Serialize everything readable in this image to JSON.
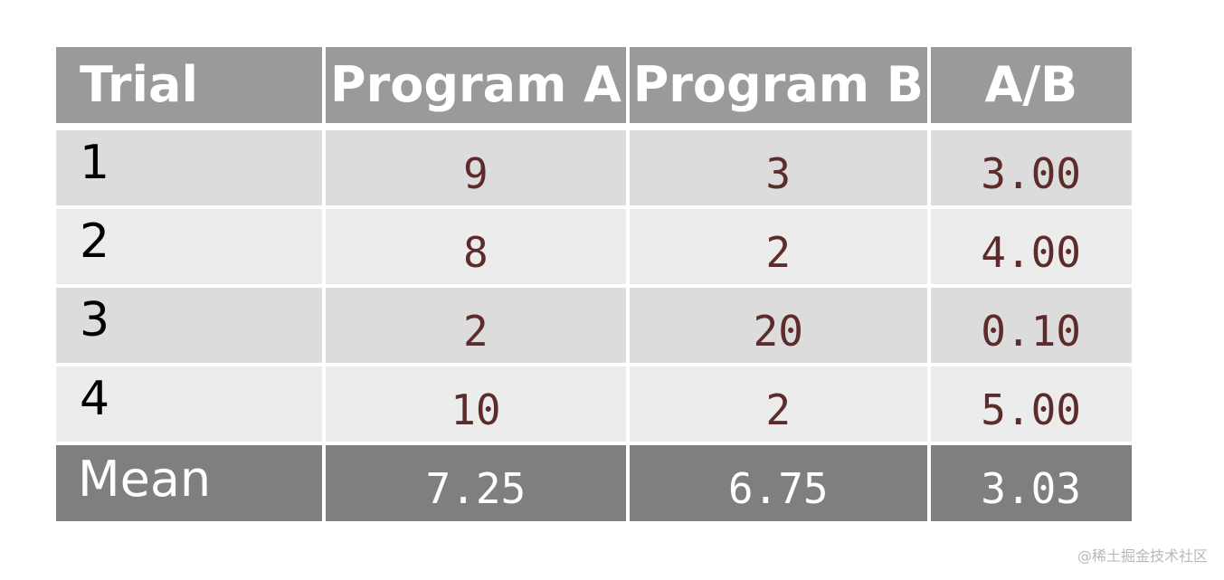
{
  "table": {
    "headers": [
      "Trial",
      "Program A",
      "Program B",
      "A/B"
    ],
    "rows": [
      {
        "trial": "1",
        "a": "9",
        "b": "3",
        "ratio": "3.00"
      },
      {
        "trial": "2",
        "a": "8",
        "b": "2",
        "ratio": "4.00"
      },
      {
        "trial": "3",
        "a": "2",
        "b": "20",
        "ratio": "0.10"
      },
      {
        "trial": "4",
        "a": "10",
        "b": "2",
        "ratio": "5.00"
      }
    ],
    "mean": {
      "label": "Mean",
      "a": "7.25",
      "b": "6.75",
      "ratio": "3.03"
    }
  },
  "watermark": "@稀土掘金技术社区",
  "colors": {
    "header_bg": "#9a9a9a",
    "mean_bg": "#7f7f7f",
    "row_odd_bg": "#dcdcdc",
    "row_even_bg": "#ececec",
    "number_text": "#5e2b2b"
  }
}
